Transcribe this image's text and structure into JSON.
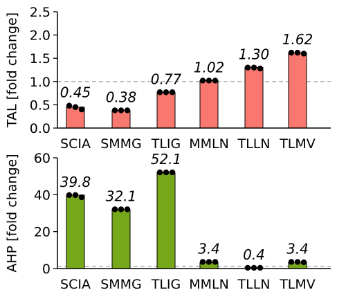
{
  "chart_data": [
    {
      "type": "bar",
      "ylabel": "TAL [fold change]",
      "categories": [
        "SCIA",
        "SMMG",
        "TLIG",
        "MMLN",
        "TLLN",
        "TLMV"
      ],
      "values": [
        0.45,
        0.38,
        0.77,
        1.02,
        1.3,
        1.62
      ],
      "value_labels": [
        "0.45",
        "0.38",
        "0.77",
        "1.02",
        "1.30",
        "1.62"
      ],
      "points": [
        [
          0.48,
          0.45,
          0.4
        ],
        [
          0.38,
          0.38,
          0.38
        ],
        [
          0.77,
          0.77,
          0.77
        ],
        [
          1.02,
          1.02,
          1.02
        ],
        [
          1.3,
          1.3,
          1.28
        ],
        [
          1.62,
          1.62,
          1.6
        ]
      ],
      "yticks": [
        "0.0",
        "0.5",
        "1.0",
        "1.5",
        "2.0",
        "2.5"
      ],
      "ylim": [
        0,
        2.5
      ],
      "reference_line": 1.0,
      "bar_color": "#f8776f",
      "grid": false
    },
    {
      "type": "bar",
      "ylabel": "AHP [fold change]",
      "categories": [
        "SCIA",
        "SMMG",
        "TLIG",
        "MMLN",
        "TLLN",
        "TLMV"
      ],
      "values": [
        39.8,
        32.1,
        52.1,
        3.4,
        0.4,
        3.4
      ],
      "value_labels": [
        "39.8",
        "32.1",
        "52.1",
        "3.4",
        "0.4",
        "3.4"
      ],
      "points": [
        [
          39.8,
          39.8,
          38.6
        ],
        [
          32.1,
          32.1,
          32.1
        ],
        [
          52.1,
          52.1,
          52.1
        ],
        [
          3.6,
          3.6,
          3.6
        ],
        [
          0.4,
          0.4,
          0.4
        ],
        [
          3.6,
          3.6,
          3.4
        ]
      ],
      "yticks": [
        "0",
        "20",
        "40",
        "60"
      ],
      "ylim": [
        0,
        60
      ],
      "reference_line": 1.0,
      "bar_color": "#77a81c",
      "grid": false
    }
  ]
}
